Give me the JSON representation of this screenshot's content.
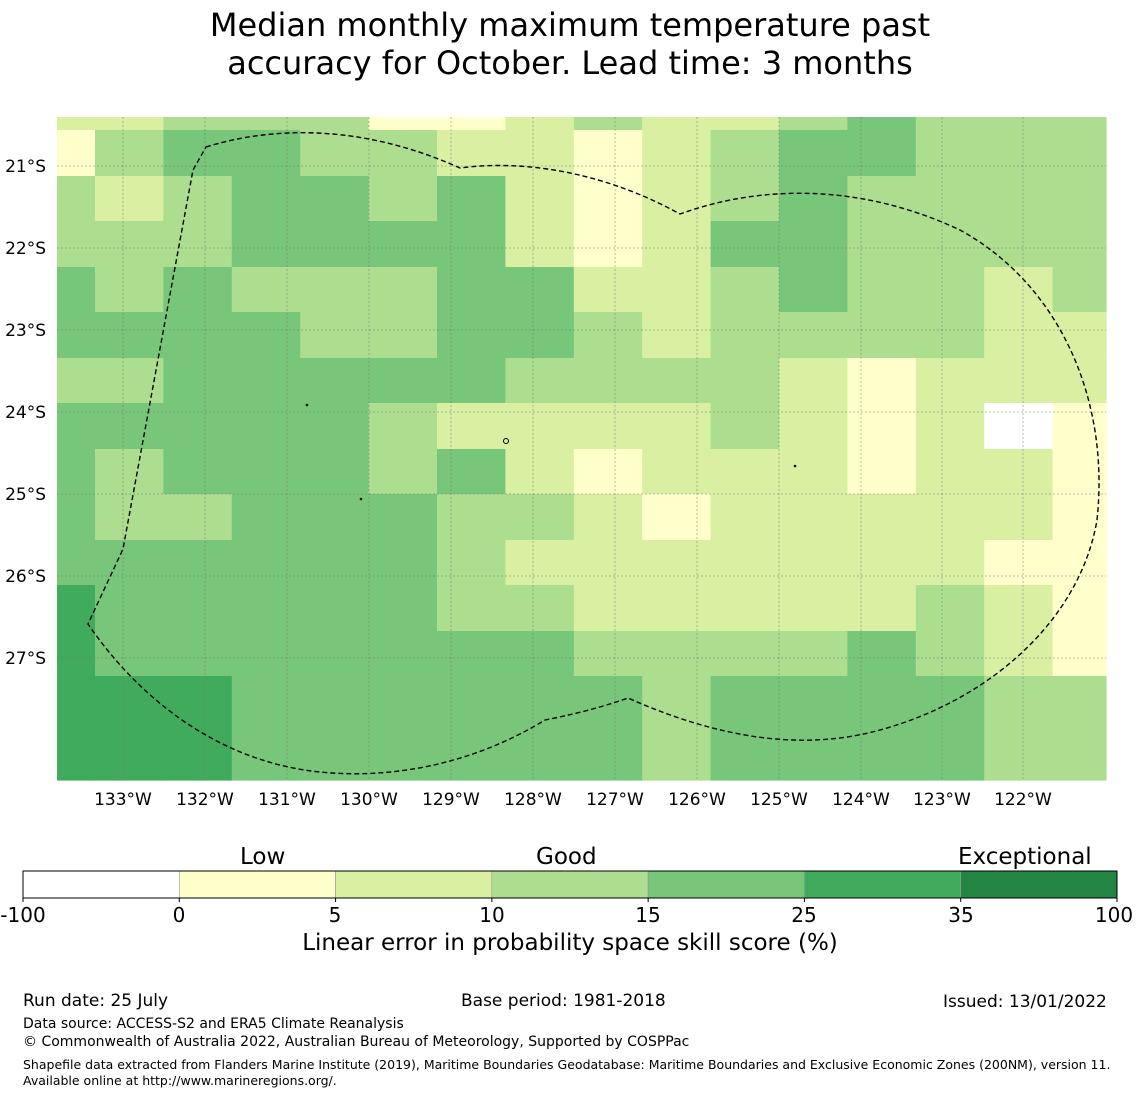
{
  "title": {
    "line1": "Median monthly maximum temperature past",
    "line2": "accuracy for October. Lead time: 3 months"
  },
  "map": {
    "lat_labels": [
      "21°S",
      "22°S",
      "23°S",
      "24°S",
      "25°S",
      "26°S",
      "27°S"
    ],
    "lon_labels": [
      "133°W",
      "132°W",
      "131°W",
      "130°W",
      "129°W",
      "128°W",
      "127°W",
      "126°W",
      "125°W",
      "124°W",
      "123°W",
      "122°W"
    ],
    "boundary_style": "dashed",
    "category_colors": [
      "#ffffff",
      "#ffffcc",
      "#d9f0a3",
      "#addd8e",
      "#78c679",
      "#41ab5d",
      "#238443"
    ],
    "grid": [
      [
        2,
        2,
        3,
        3,
        3,
        1,
        1,
        2,
        3,
        2,
        2,
        3,
        4,
        3,
        3,
        3,
        2
      ],
      [
        1,
        3,
        4,
        4,
        3,
        3,
        2,
        2,
        1,
        2,
        3,
        4,
        4,
        3,
        3,
        3,
        2
      ],
      [
        3,
        2,
        3,
        4,
        4,
        3,
        4,
        2,
        1,
        2,
        3,
        4,
        3,
        3,
        3,
        3,
        3
      ],
      [
        3,
        3,
        3,
        4,
        4,
        4,
        4,
        2,
        1,
        2,
        4,
        4,
        3,
        3,
        3,
        3,
        3
      ],
      [
        4,
        3,
        4,
        3,
        3,
        3,
        4,
        4,
        2,
        2,
        3,
        4,
        3,
        3,
        2,
        3,
        2
      ],
      [
        4,
        4,
        4,
        4,
        3,
        3,
        4,
        4,
        3,
        2,
        3,
        3,
        3,
        3,
        2,
        2,
        3
      ],
      [
        3,
        3,
        4,
        4,
        4,
        4,
        4,
        3,
        3,
        3,
        3,
        2,
        1,
        2,
        2,
        2,
        3
      ],
      [
        4,
        4,
        4,
        4,
        4,
        3,
        2,
        2,
        2,
        2,
        3,
        2,
        1,
        2,
        0,
        1,
        2
      ],
      [
        4,
        3,
        4,
        4,
        4,
        3,
        4,
        2,
        1,
        2,
        2,
        2,
        1,
        2,
        2,
        1,
        3
      ],
      [
        4,
        3,
        3,
        4,
        4,
        4,
        3,
        3,
        2,
        1,
        2,
        2,
        2,
        2,
        2,
        1,
        2
      ],
      [
        4,
        4,
        4,
        4,
        4,
        4,
        3,
        2,
        2,
        2,
        2,
        2,
        2,
        2,
        1,
        1,
        2
      ],
      [
        5,
        4,
        4,
        4,
        4,
        4,
        3,
        3,
        2,
        2,
        2,
        2,
        2,
        3,
        2,
        1,
        3
      ],
      [
        5,
        4,
        4,
        4,
        4,
        4,
        4,
        4,
        3,
        3,
        3,
        3,
        4,
        3,
        2,
        1,
        3
      ],
      [
        5,
        5,
        5,
        4,
        4,
        4,
        4,
        4,
        4,
        3,
        4,
        4,
        4,
        4,
        3,
        3,
        2
      ],
      [
        5,
        5,
        5,
        4,
        4,
        4,
        4,
        4,
        4,
        3,
        4,
        4,
        4,
        4,
        3,
        3,
        2
      ]
    ]
  },
  "colorbar": {
    "category_words": [
      "Low",
      "Good",
      "Exceptional"
    ],
    "ticks": [
      "-100",
      "0",
      "5",
      "10",
      "15",
      "25",
      "35",
      "100"
    ],
    "colors": [
      "#ffffff",
      "#ffffcc",
      "#d9f0a3",
      "#addd8e",
      "#78c679",
      "#41ab5d",
      "#238443"
    ],
    "label": "Linear error in probability space skill score (%)"
  },
  "footer": {
    "run_date": "Run date: 25 July",
    "base_period": "Base period: 1981-2018",
    "issued": "Issued: 13/01/2022",
    "data_source": "Data source: ACCESS-S2 and ERA5 Climate Reanalysis",
    "copyright": "© Commonwealth of Australia 2022, Australian Bureau of Meteorology, Supported by COSPPac",
    "shapefile": "Shapefile data extracted from Flanders Marine Institute (2019), Maritime Boundaries Geodatabase: Maritime Boundaries and Exclusive Economic Zones (200NM), version 11. Available online at http://www.marineregions.org/."
  }
}
